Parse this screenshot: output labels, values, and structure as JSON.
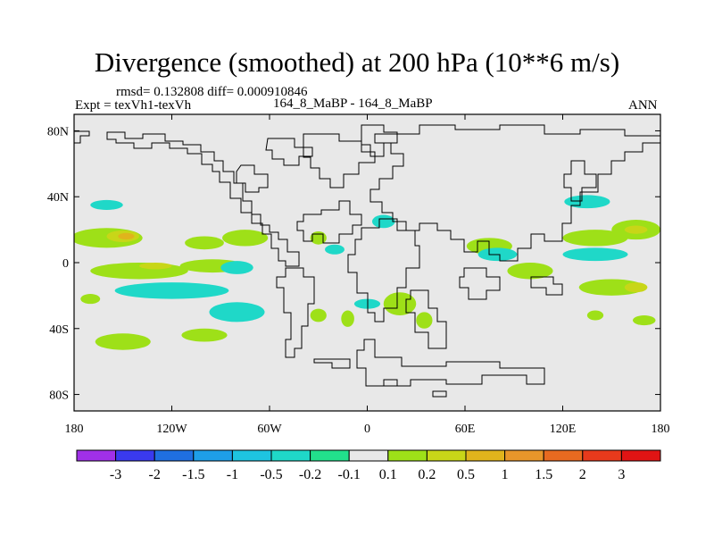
{
  "chart_data": {
    "type": "contour-map",
    "title": "Divergence (smoothed) at 200 hPa (10**6 m/s)",
    "stats": "rmsd= 0.132808 diff= 0.000910846",
    "left_label": "Expt = texVh1-texVh",
    "center_label": "164_8_MaBP - 164_8_MaBP",
    "right_label": "ANN",
    "x_ticks": [
      "180",
      "120W",
      "60W",
      "0",
      "60E",
      "120E",
      "180"
    ],
    "x_tick_values": [
      -180,
      -120,
      -60,
      0,
      60,
      120,
      180
    ],
    "y_ticks": [
      "80N",
      "40N",
      "0",
      "40S",
      "80S"
    ],
    "y_tick_values": [
      80,
      40,
      0,
      -40,
      -80
    ],
    "xlim": [
      -180,
      180
    ],
    "ylim": [
      -90,
      90
    ],
    "colorbar": {
      "labels": [
        "-3",
        "-2",
        "-1.5",
        "-1",
        "-0.5",
        "-0.2",
        "-0.1",
        "0.1",
        "0.2",
        "0.5",
        "1",
        "1.5",
        "2",
        "3"
      ],
      "colors": [
        "#a030e8",
        "#3a3aee",
        "#1f6fe0",
        "#1e9ee8",
        "#1ec4e0",
        "#1fd8c8",
        "#22e08c",
        "#e8e8e8",
        "#9ee018",
        "#c8d618",
        "#e0b41c",
        "#e8962a",
        "#e86a20",
        "#e83a1c",
        "#e01414"
      ]
    },
    "regions": [
      {
        "lon": -160,
        "lat": 15,
        "rlon": 22,
        "rlat": 6,
        "level": 0.2,
        "color": "#9ee018"
      },
      {
        "lon": -150,
        "lat": 16,
        "rlon": 10,
        "rlat": 3.5,
        "level": 0.5,
        "color": "#c8d618"
      },
      {
        "lon": -148,
        "lat": 16,
        "rlon": 5,
        "rlat": 2,
        "level": 1,
        "color": "#e0b41c"
      },
      {
        "lon": -100,
        "lat": 12,
        "rlon": 12,
        "rlat": 4,
        "level": 0.2,
        "color": "#9ee018"
      },
      {
        "lon": -75,
        "lat": 15,
        "rlon": 14,
        "rlat": 5,
        "level": 0.2,
        "color": "#9ee018"
      },
      {
        "lon": -140,
        "lat": -5,
        "rlon": 30,
        "rlat": 5,
        "level": 0.2,
        "color": "#9ee018"
      },
      {
        "lon": -130,
        "lat": -2,
        "rlon": 10,
        "rlat": 2,
        "level": 0.5,
        "color": "#c8d618"
      },
      {
        "lon": -95,
        "lat": -2,
        "rlon": 20,
        "rlat": 4,
        "level": 0.2,
        "color": "#9ee018"
      },
      {
        "lon": -120,
        "lat": -17,
        "rlon": 35,
        "rlat": 5,
        "level": -0.2,
        "color": "#1fd8c8"
      },
      {
        "lon": -80,
        "lat": -30,
        "rlon": 17,
        "rlat": 6,
        "level": -0.2,
        "color": "#1fd8c8"
      },
      {
        "lon": -80,
        "lat": -3,
        "rlon": 10,
        "rlat": 4,
        "level": -0.2,
        "color": "#1fd8c8"
      },
      {
        "lon": -160,
        "lat": 35,
        "rlon": 10,
        "rlat": 3,
        "level": -0.2,
        "color": "#1fd8c8"
      },
      {
        "lon": -150,
        "lat": -48,
        "rlon": 17,
        "rlat": 5,
        "level": 0.2,
        "color": "#9ee018"
      },
      {
        "lon": -100,
        "lat": -44,
        "rlon": 14,
        "rlat": 4,
        "level": 0.2,
        "color": "#9ee018"
      },
      {
        "lon": -170,
        "lat": -22,
        "rlon": 6,
        "rlat": 3,
        "level": 0.2,
        "color": "#9ee018"
      },
      {
        "lon": -30,
        "lat": 15,
        "rlon": 5,
        "rlat": 4,
        "level": 0.2,
        "color": "#9ee018"
      },
      {
        "lon": -20,
        "lat": 8,
        "rlon": 6,
        "rlat": 3,
        "level": -0.2,
        "color": "#1fd8c8"
      },
      {
        "lon": 10,
        "lat": 25,
        "rlon": 7,
        "rlat": 4,
        "level": -0.2,
        "color": "#1fd8c8"
      },
      {
        "lon": 0,
        "lat": -25,
        "rlon": 8,
        "rlat": 3,
        "level": -0.2,
        "color": "#1fd8c8"
      },
      {
        "lon": 20,
        "lat": -25,
        "rlon": 10,
        "rlat": 7,
        "level": 0.2,
        "color": "#9ee018"
      },
      {
        "lon": 35,
        "lat": -35,
        "rlon": 5,
        "rlat": 5,
        "level": 0.2,
        "color": "#9ee018"
      },
      {
        "lon": -12,
        "lat": -34,
        "rlon": 4,
        "rlat": 5,
        "level": 0.2,
        "color": "#9ee018"
      },
      {
        "lon": 75,
        "lat": 10,
        "rlon": 14,
        "rlat": 5,
        "level": 0.2,
        "color": "#9ee018"
      },
      {
        "lon": 80,
        "lat": 5,
        "rlon": 12,
        "rlat": 4,
        "level": -0.2,
        "color": "#1fd8c8"
      },
      {
        "lon": 100,
        "lat": -5,
        "rlon": 14,
        "rlat": 5,
        "level": 0.2,
        "color": "#9ee018"
      },
      {
        "lon": 140,
        "lat": 5,
        "rlon": 20,
        "rlat": 4,
        "level": -0.2,
        "color": "#1fd8c8"
      },
      {
        "lon": 140,
        "lat": 15,
        "rlon": 20,
        "rlat": 5,
        "level": 0.2,
        "color": "#9ee018"
      },
      {
        "lon": 165,
        "lat": 20,
        "rlon": 15,
        "rlat": 6,
        "level": 0.2,
        "color": "#9ee018"
      },
      {
        "lon": 165,
        "lat": 20,
        "rlon": 7,
        "rlat": 2.5,
        "level": 0.5,
        "color": "#c8d618"
      },
      {
        "lon": 135,
        "lat": 37,
        "rlon": 14,
        "rlat": 4,
        "level": -0.2,
        "color": "#1fd8c8"
      },
      {
        "lon": 150,
        "lat": -15,
        "rlon": 20,
        "rlat": 5,
        "level": 0.2,
        "color": "#9ee018"
      },
      {
        "lon": 165,
        "lat": -15,
        "rlon": 7,
        "rlat": 3,
        "level": 0.5,
        "color": "#c8d618"
      },
      {
        "lon": 170,
        "lat": -35,
        "rlon": 7,
        "rlat": 3,
        "level": 0.2,
        "color": "#9ee018"
      },
      {
        "lon": 140,
        "lat": -32,
        "rlon": 5,
        "rlat": 3,
        "level": 0.2,
        "color": "#9ee018"
      },
      {
        "lon": -30,
        "lat": -32,
        "rlon": 5,
        "rlat": 4,
        "level": 0.2,
        "color": "#9ee018"
      }
    ]
  }
}
